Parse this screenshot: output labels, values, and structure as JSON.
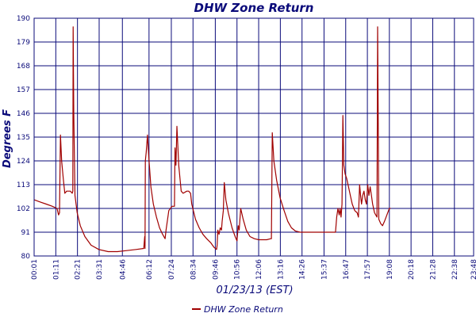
{
  "chart_data": {
    "type": "line",
    "title": "DHW Zone Return",
    "xlabel": "01/23/13 (EST)",
    "ylabel": "Degrees F",
    "ylim": [
      80,
      190
    ],
    "yticks": [
      80,
      91,
      102,
      113,
      124,
      135,
      146,
      157,
      168,
      179,
      190
    ],
    "xlim": [
      1,
      1420
    ],
    "xticks": [
      {
        "label": "00:01",
        "value": 1
      },
      {
        "label": "01:11",
        "value": 71
      },
      {
        "label": "02:21",
        "value": 141
      },
      {
        "label": "03:31",
        "value": 211
      },
      {
        "label": "04:46",
        "value": 286
      },
      {
        "label": "06:12",
        "value": 372
      },
      {
        "label": "07:24",
        "value": 444
      },
      {
        "label": "08:34",
        "value": 514
      },
      {
        "label": "09:46",
        "value": 586
      },
      {
        "label": "10:56",
        "value": 656
      },
      {
        "label": "12:06",
        "value": 726
      },
      {
        "label": "13:16",
        "value": 796
      },
      {
        "label": "14:26",
        "value": 866
      },
      {
        "label": "15:37",
        "value": 937
      },
      {
        "label": "16:47",
        "value": 1007
      },
      {
        "label": "17:57",
        "value": 1077
      },
      {
        "label": "19:08",
        "value": 1148
      },
      {
        "label": "20:18",
        "value": 1218
      },
      {
        "label": "21:28",
        "value": 1288
      },
      {
        "label": "22:38",
        "value": 1358
      },
      {
        "label": "23:48",
        "value": 1420
      }
    ],
    "grid": true,
    "legend": "bottom-center",
    "series": [
      {
        "name": "DHW Zone Return",
        "color": "#a00000",
        "points": [
          [
            1,
            106
          ],
          [
            20,
            105
          ],
          [
            40,
            104
          ],
          [
            60,
            103
          ],
          [
            75,
            102
          ],
          [
            80,
            99
          ],
          [
            83,
            100
          ],
          [
            86,
            136
          ],
          [
            90,
            124
          ],
          [
            95,
            116
          ],
          [
            100,
            109
          ],
          [
            106,
            110
          ],
          [
            112,
            110
          ],
          [
            118,
            110
          ],
          [
            124,
            109
          ],
          [
            126,
            110
          ],
          [
            127,
            186
          ],
          [
            129,
            146
          ],
          [
            133,
            108
          ],
          [
            140,
            100
          ],
          [
            150,
            94
          ],
          [
            165,
            89
          ],
          [
            185,
            85
          ],
          [
            210,
            83
          ],
          [
            240,
            82
          ],
          [
            270,
            82
          ],
          [
            300,
            82.5
          ],
          [
            330,
            83
          ],
          [
            355,
            83.5
          ],
          [
            358,
            89
          ],
          [
            359,
            83.5
          ],
          [
            360,
            124
          ],
          [
            363,
            128
          ],
          [
            367,
            136
          ],
          [
            371,
            126
          ],
          [
            378,
            112
          ],
          [
            386,
            104
          ],
          [
            396,
            98
          ],
          [
            406,
            93
          ],
          [
            416,
            90
          ],
          [
            424,
            88
          ],
          [
            427,
            92
          ],
          [
            436,
            101
          ],
          [
            446,
            103
          ],
          [
            454,
            103
          ],
          [
            456,
            130
          ],
          [
            459,
            122
          ],
          [
            462,
            140
          ],
          [
            468,
            122
          ],
          [
            476,
            110
          ],
          [
            482,
            109
          ],
          [
            494,
            110
          ],
          [
            500,
            110
          ],
          [
            506,
            109
          ],
          [
            510,
            104
          ],
          [
            522,
            97
          ],
          [
            534,
            93
          ],
          [
            546,
            90
          ],
          [
            558,
            88
          ],
          [
            572,
            86
          ],
          [
            582,
            84
          ],
          [
            590,
            83
          ],
          [
            592,
            85
          ],
          [
            594,
            92
          ],
          [
            598,
            90
          ],
          [
            602,
            93
          ],
          [
            606,
            92
          ],
          [
            608,
            96
          ],
          [
            612,
            101
          ],
          [
            615,
            114
          ],
          [
            620,
            106
          ],
          [
            628,
            100
          ],
          [
            640,
            93
          ],
          [
            650,
            89
          ],
          [
            656,
            87
          ],
          [
            660,
            94
          ],
          [
            663,
            92
          ],
          [
            668,
            102
          ],
          [
            676,
            97
          ],
          [
            686,
            92
          ],
          [
            698,
            89
          ],
          [
            712,
            88
          ],
          [
            726,
            87.5
          ],
          [
            740,
            87.5
          ],
          [
            752,
            87.5
          ],
          [
            765,
            88
          ],
          [
            767,
            88
          ],
          [
            770,
            137
          ],
          [
            775,
            124
          ],
          [
            784,
            115
          ],
          [
            795,
            107
          ],
          [
            808,
            101
          ],
          [
            820,
            96
          ],
          [
            832,
            93
          ],
          [
            845,
            91.5
          ],
          [
            860,
            91
          ],
          [
            880,
            91
          ],
          [
            900,
            91
          ],
          [
            920,
            91
          ],
          [
            940,
            91
          ],
          [
            958,
            91
          ],
          [
            974,
            91
          ],
          [
            978,
            98
          ],
          [
            982,
            102
          ],
          [
            986,
            99
          ],
          [
            989,
            102
          ],
          [
            992,
            98
          ],
          [
            995,
            104
          ],
          [
            998,
            145
          ],
          [
            1001,
            122
          ],
          [
            1005,
            118
          ],
          [
            1010,
            116
          ],
          [
            1016,
            112
          ],
          [
            1022,
            108
          ],
          [
            1028,
            104
          ],
          [
            1036,
            101
          ],
          [
            1044,
            100
          ],
          [
            1048,
            98
          ],
          [
            1052,
            113
          ],
          [
            1055,
            108
          ],
          [
            1058,
            104
          ],
          [
            1062,
            108
          ],
          [
            1066,
            110
          ],
          [
            1070,
            106
          ],
          [
            1074,
            104
          ],
          [
            1078,
            113
          ],
          [
            1082,
            108
          ],
          [
            1086,
            112
          ],
          [
            1090,
            108
          ],
          [
            1094,
            104
          ],
          [
            1100,
            100
          ],
          [
            1108,
            98
          ],
          [
            1110,
            186
          ],
          [
            1112,
            140
          ],
          [
            1114,
            97
          ],
          [
            1120,
            95
          ],
          [
            1126,
            94
          ],
          [
            1132,
            96
          ],
          [
            1140,
            99
          ],
          [
            1148,
            102
          ],
          [
            1152,
            102
          ]
        ]
      }
    ]
  }
}
